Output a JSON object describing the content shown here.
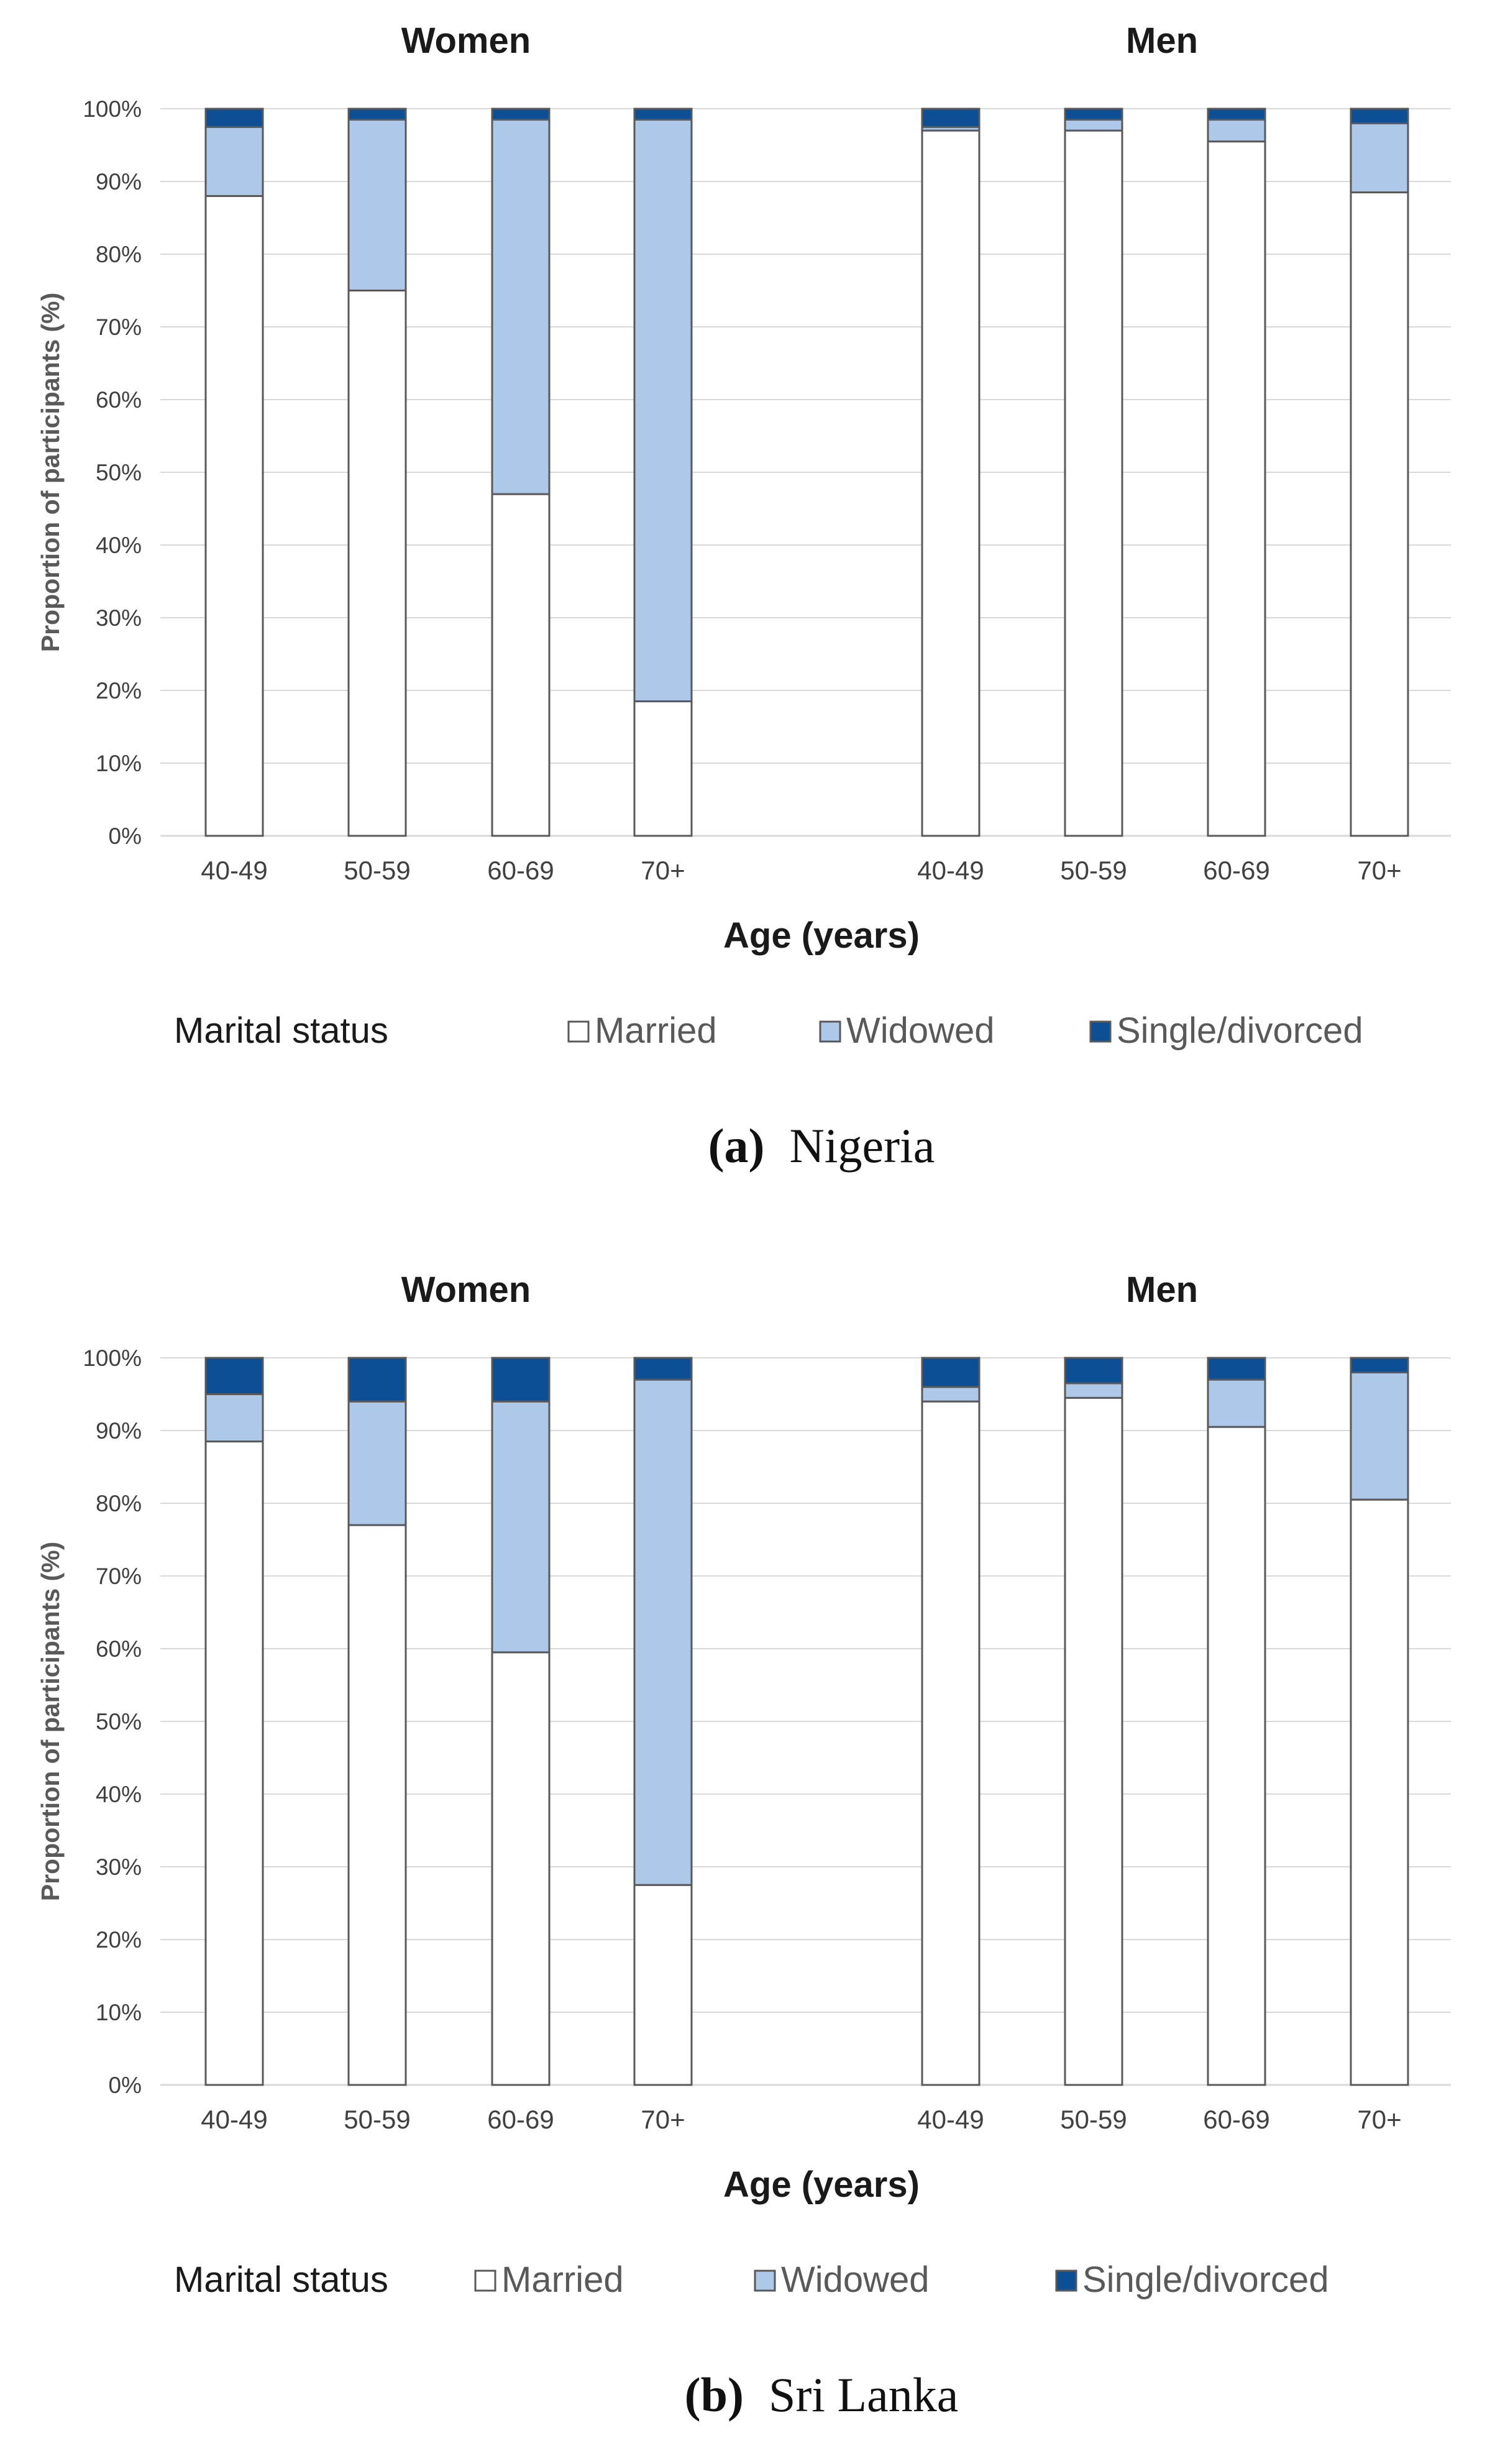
{
  "chart_data": [
    {
      "type": "bar",
      "stacked": true,
      "panel_label": "(a)",
      "caption": "Nigeria",
      "ylabel": "Proportion of participants (%)",
      "xlabel": "Age (years)",
      "ylim": [
        0,
        100
      ],
      "yticks": [
        "0%",
        "10%",
        "20%",
        "30%",
        "40%",
        "50%",
        "60%",
        "70%",
        "80%",
        "90%",
        "100%"
      ],
      "grid": true,
      "legend_title": "Marital status",
      "legend_position": "bottom",
      "groups": [
        {
          "title": "Women",
          "categories": [
            "40-49",
            "50-59",
            "60-69",
            "70+"
          ],
          "series": [
            {
              "name": "Married",
              "values": [
                88,
                75,
                47,
                18.5
              ]
            },
            {
              "name": "Widowed",
              "values": [
                9.5,
                23.5,
                51.5,
                80
              ]
            },
            {
              "name": "Single/divorced",
              "values": [
                2.5,
                1.5,
                1.5,
                1.5
              ]
            }
          ]
        },
        {
          "title": "Men",
          "categories": [
            "40-49",
            "50-59",
            "60-69",
            "70+"
          ],
          "series": [
            {
              "name": "Married",
              "values": [
                97,
                97,
                95.5,
                88.5
              ]
            },
            {
              "name": "Widowed",
              "values": [
                0.5,
                1.5,
                3,
                9.5
              ]
            },
            {
              "name": "Single/divorced",
              "values": [
                2.5,
                1.5,
                1.5,
                2
              ]
            }
          ]
        }
      ]
    },
    {
      "type": "bar",
      "stacked": true,
      "panel_label": "(b)",
      "caption": "Sri Lanka",
      "ylabel": "Proportion of participants (%)",
      "xlabel": "Age (years)",
      "ylim": [
        0,
        100
      ],
      "yticks": [
        "0%",
        "10%",
        "20%",
        "30%",
        "40%",
        "50%",
        "60%",
        "70%",
        "80%",
        "90%",
        "100%"
      ],
      "grid": true,
      "legend_title": "Marital status",
      "legend_position": "bottom",
      "groups": [
        {
          "title": "Women",
          "categories": [
            "40-49",
            "50-59",
            "60-69",
            "70+"
          ],
          "series": [
            {
              "name": "Married",
              "values": [
                88.5,
                77,
                59.5,
                27.5
              ]
            },
            {
              "name": "Widowed",
              "values": [
                6.5,
                17,
                34.5,
                69.5
              ]
            },
            {
              "name": "Single/divorced",
              "values": [
                5,
                6,
                6,
                3
              ]
            }
          ]
        },
        {
          "title": "Men",
          "categories": [
            "40-49",
            "50-59",
            "60-69",
            "70+"
          ],
          "series": [
            {
              "name": "Married",
              "values": [
                94,
                94.5,
                90.5,
                80.5
              ]
            },
            {
              "name": "Widowed",
              "values": [
                2,
                2,
                6.5,
                17.5
              ]
            },
            {
              "name": "Single/divorced",
              "values": [
                4,
                3.5,
                3,
                2
              ]
            }
          ]
        }
      ]
    }
  ],
  "colors": {
    "Married": "#ffffff",
    "Widowed": "#aec8ea",
    "Single/divorced": "#0d4f95",
    "bar_outline": "#595959",
    "grid": "#d9d9d9",
    "text": "#404040",
    "title": "#1a1a1a"
  }
}
